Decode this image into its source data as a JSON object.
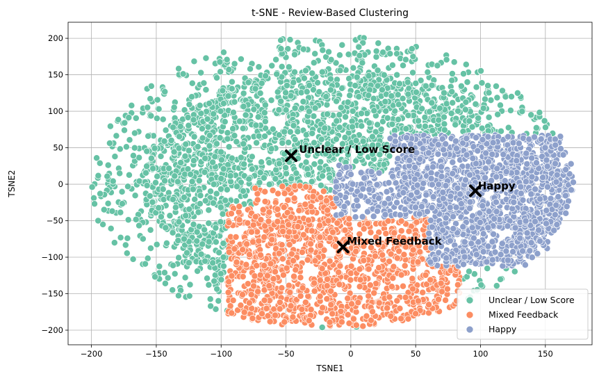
{
  "chart_data": {
    "type": "scatter",
    "title": "t-SNE - Review-Based Clustering",
    "xlabel": "TSNE1",
    "ylabel": "TSNE2",
    "xlim": [
      -218,
      186
    ],
    "ylim": [
      -220,
      222
    ],
    "xticks": [
      -200,
      -150,
      -100,
      -50,
      0,
      50,
      100,
      150
    ],
    "yticks": [
      -200,
      -150,
      -100,
      -50,
      0,
      50,
      100,
      150,
      200
    ],
    "grid": true,
    "legend_position": "lower-right",
    "series": [
      {
        "name": "Unclear / Low Score",
        "color": "#66c2a5",
        "cluster_center": [
          -47,
          40
        ],
        "region": {
          "center": [
            -17,
            3
          ],
          "radius_x": 185,
          "radius_y": 200
        }
      },
      {
        "name": "Mixed Feedback",
        "color": "#fc8d62",
        "cluster_center": [
          -4,
          -84
        ],
        "region": {
          "x_range": [
            -95,
            80
          ],
          "y_range": [
            -190,
            5
          ]
        }
      },
      {
        "name": "Happy",
        "color": "#8da0cb",
        "cluster_center": [
          96,
          -9
        ],
        "region": {
          "x_range": [
            -15,
            172
          ],
          "y_range": [
            -112,
            70
          ]
        }
      }
    ],
    "annotations": [
      {
        "text": "Unclear / Low Score",
        "x": -40,
        "y": 43,
        "marker_x": -46,
        "marker_y": 39
      },
      {
        "text": "Happy",
        "x": 98,
        "y": -7,
        "marker_x": 96,
        "marker_y": -9
      },
      {
        "text": "Mixed Feedback",
        "x": -3,
        "y": -83,
        "marker_x": -6,
        "marker_y": -86
      }
    ]
  }
}
